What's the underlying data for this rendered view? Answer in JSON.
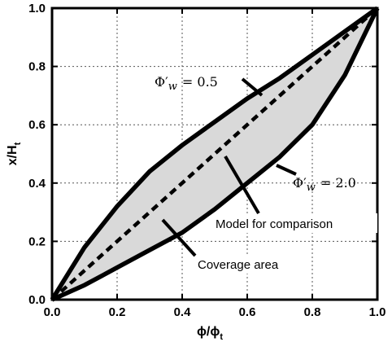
{
  "chart_data": {
    "type": "line",
    "xlabel": "ϕ/ϕ",
    "xlabel_sub": "t",
    "ylabel": "x/H",
    "ylabel_sub": "t",
    "xlim": [
      0,
      1
    ],
    "ylim": [
      0,
      1
    ],
    "grid": true,
    "xticks": [
      "0.0",
      "0.2",
      "0.4",
      "0.6",
      "0.8",
      "1.0"
    ],
    "yticks": [
      "0.0",
      "0.2",
      "0.4",
      "0.6",
      "0.8",
      "1.0"
    ],
    "series": [
      {
        "label_prefix": "Φ′",
        "label_sub": "w",
        "label_value": "= 0.5",
        "x": [
          0,
          0.1,
          0.2,
          0.3,
          0.4,
          0.5,
          0.6,
          0.7,
          0.8,
          0.9,
          1.0
        ],
        "y": [
          0,
          0.18,
          0.32,
          0.44,
          0.53,
          0.61,
          0.69,
          0.76,
          0.84,
          0.92,
          1.0
        ],
        "color": "#000000"
      },
      {
        "label_prefix": "Φ′",
        "label_sub": "w",
        "label_value": "= 2.0",
        "x": [
          0,
          0.1,
          0.2,
          0.3,
          0.4,
          0.5,
          0.6,
          0.7,
          0.8,
          0.9,
          1.0
        ],
        "y": [
          0,
          0.05,
          0.11,
          0.17,
          0.23,
          0.31,
          0.4,
          0.49,
          0.6,
          0.77,
          1.0
        ],
        "color": "#000000"
      },
      {
        "label": "Model for comparison",
        "style": "dashed",
        "x": [
          0,
          1
        ],
        "y": [
          0,
          1
        ],
        "color": "#000000"
      }
    ],
    "fill": {
      "label": "Coverage area",
      "color": "#d9d9d9"
    }
  }
}
